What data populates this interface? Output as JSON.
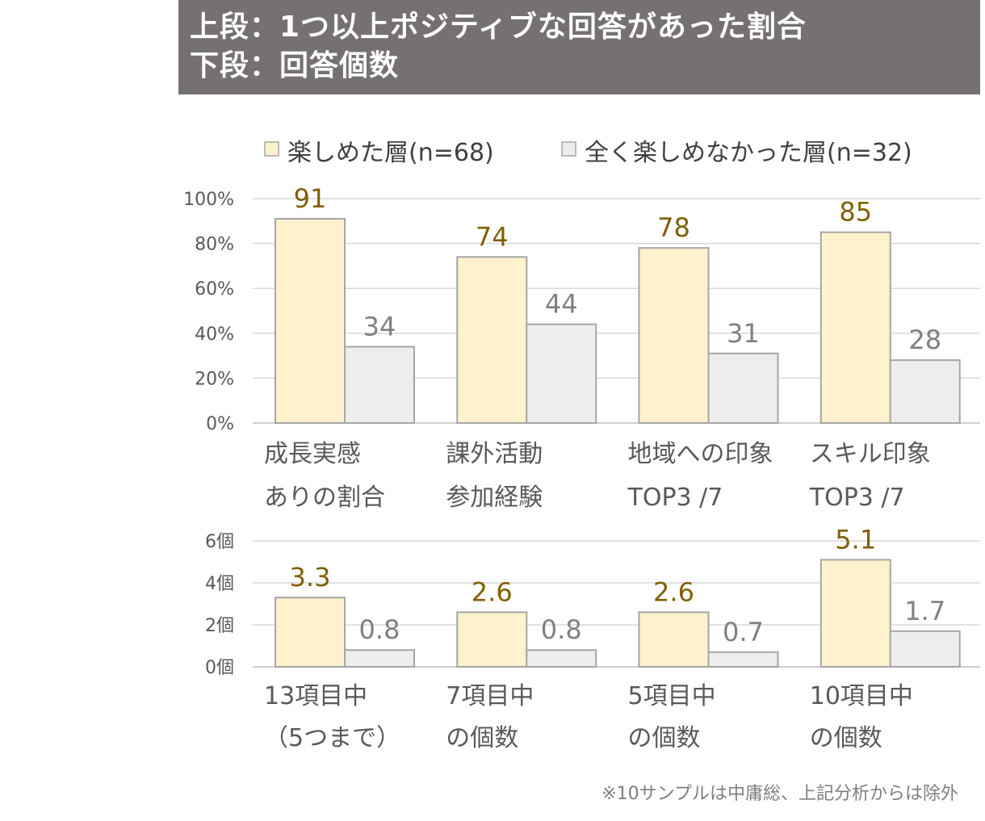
{
  "header": {
    "line1": "上段：1つ以上ポジティブな回答があった割合",
    "line2": "下段：回答個数"
  },
  "footnote": "※10サンプルは中庸総、上記分析からは除外",
  "colors": {
    "series1_fill": "#FFF2CC",
    "series2_fill": "#EDEDED",
    "bar_stroke": "#A6A6A6",
    "series1_label": "#7F6000",
    "series2_label": "#808080",
    "grid": "#D9D9D9",
    "axis_text": "#595959"
  },
  "chart_data": [
    {
      "type": "bar",
      "categories": [
        [
          "成長実感",
          "ありの割合"
        ],
        [
          "課外活動",
          "参加経験"
        ],
        [
          "地域への印象",
          "TOP3 /7"
        ],
        [
          "スキル印象",
          "TOP3 /7"
        ]
      ],
      "series": [
        {
          "name": "楽しめた層(n=68)",
          "values": [
            91,
            74,
            78,
            85
          ]
        },
        {
          "name": "全く楽しめなかった層(n=32)",
          "values": [
            34,
            44,
            31,
            28
          ]
        }
      ],
      "yticks": [
        "0%",
        "20%",
        "40%",
        "60%",
        "80%",
        "100%"
      ],
      "ylim": [
        0,
        100
      ],
      "data_labels": [
        [
          "91",
          "74",
          "78",
          "85"
        ],
        [
          "34",
          "44",
          "31",
          "28"
        ]
      ],
      "legend_position": "top",
      "grid": true
    },
    {
      "type": "bar",
      "categories": [
        [
          "13項目中",
          "（5つまで）"
        ],
        [
          "7項目中",
          "の個数"
        ],
        [
          "5項目中",
          "の個数"
        ],
        [
          "10項目中",
          "の個数"
        ]
      ],
      "series": [
        {
          "name": "楽しめた層(n=68)",
          "values": [
            3.3,
            2.6,
            2.6,
            5.1
          ]
        },
        {
          "name": "全く楽しめなかった層(n=32)",
          "values": [
            0.8,
            0.8,
            0.7,
            1.7
          ]
        }
      ],
      "yticks": [
        "0個",
        "2個",
        "4個",
        "6個"
      ],
      "ylim": [
        0,
        6
      ],
      "data_labels": [
        [
          "3.3",
          "2.6",
          "2.6",
          "5.1"
        ],
        [
          "0.8",
          "0.8",
          "0.7",
          "1.7"
        ]
      ],
      "grid": true
    }
  ]
}
